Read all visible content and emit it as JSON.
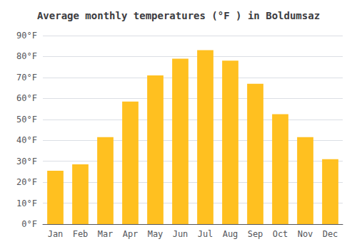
{
  "chart_data": {
    "type": "bar",
    "title": "Average monthly temperatures (°F ) in Boldumsaz",
    "categories": [
      "Jan",
      "Feb",
      "Mar",
      "Apr",
      "May",
      "Jun",
      "Jul",
      "Aug",
      "Sep",
      "Oct",
      "Nov",
      "Dec"
    ],
    "values": [
      25.5,
      28.5,
      41.5,
      58.5,
      71.0,
      79.0,
      83.0,
      78.0,
      67.0,
      52.5,
      41.5,
      31.0
    ],
    "color": "#FFC020",
    "ylim": [
      0,
      90
    ],
    "yticks": [
      {
        "value": 0,
        "label": "0°F"
      },
      {
        "value": 10,
        "label": "10°F"
      },
      {
        "value": 20,
        "label": "20°F"
      },
      {
        "value": 30,
        "label": "30°F"
      },
      {
        "value": 40,
        "label": "40°F"
      },
      {
        "value": 50,
        "label": "50°F"
      },
      {
        "value": 60,
        "label": "60°F"
      },
      {
        "value": 70,
        "label": "70°F"
      },
      {
        "value": 80,
        "label": "80°F"
      },
      {
        "value": 90,
        "label": "90°F"
      }
    ],
    "grid": true
  }
}
